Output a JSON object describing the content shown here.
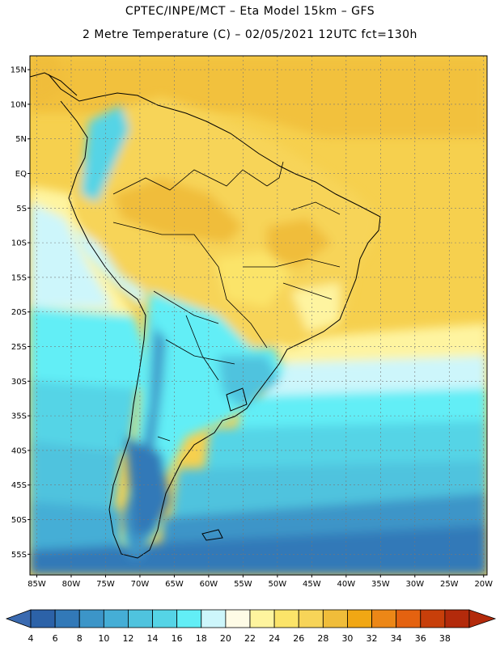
{
  "header": {
    "line1": "CPTEC/INPE/MCT –  Eta Model 15km – GFS",
    "line2": "2 Metre Temperature (C) – 02/05/2021 12UTC fct=130h"
  },
  "map": {
    "lon_min": -86,
    "lon_max": -19.5,
    "lat_min": -58,
    "lat_max": 17,
    "lat_ticks": [
      "15N",
      "10N",
      "5N",
      "EQ",
      "5S",
      "10S",
      "15S",
      "20S",
      "25S",
      "30S",
      "35S",
      "40S",
      "45S",
      "50S",
      "55S"
    ],
    "lat_values": [
      15,
      10,
      5,
      0,
      -5,
      -10,
      -15,
      -20,
      -25,
      -30,
      -35,
      -40,
      -45,
      -50,
      -55
    ],
    "lon_ticks": [
      "85W",
      "80W",
      "75W",
      "70W",
      "65W",
      "60W",
      "55W",
      "50W",
      "45W",
      "40W",
      "35W",
      "30W",
      "25W",
      "20W"
    ],
    "lon_values": [
      -85,
      -80,
      -75,
      -70,
      -65,
      -60,
      -55,
      -50,
      -45,
      -40,
      -35,
      -30,
      -25,
      -20
    ]
  },
  "colorbar": {
    "labels": [
      "4",
      "6",
      "8",
      "10",
      "12",
      "14",
      "16",
      "18",
      "20",
      "22",
      "24",
      "26",
      "28",
      "30",
      "32",
      "34",
      "36",
      "38"
    ],
    "colors": [
      "#2c62a8",
      "#3279b8",
      "#3c95c8",
      "#45aed6",
      "#4fc3de",
      "#55d4e6",
      "#62eef6",
      "#cdf6fb",
      "#fefbe6",
      "#fef49e",
      "#fbe469",
      "#f7d458",
      "#f0bd3a",
      "#f1a714",
      "#ec8717",
      "#e46210",
      "#c83f0a",
      "#b32a0b"
    ],
    "under_color": "#3a6ab0",
    "over_color": "#b32a0b"
  }
}
